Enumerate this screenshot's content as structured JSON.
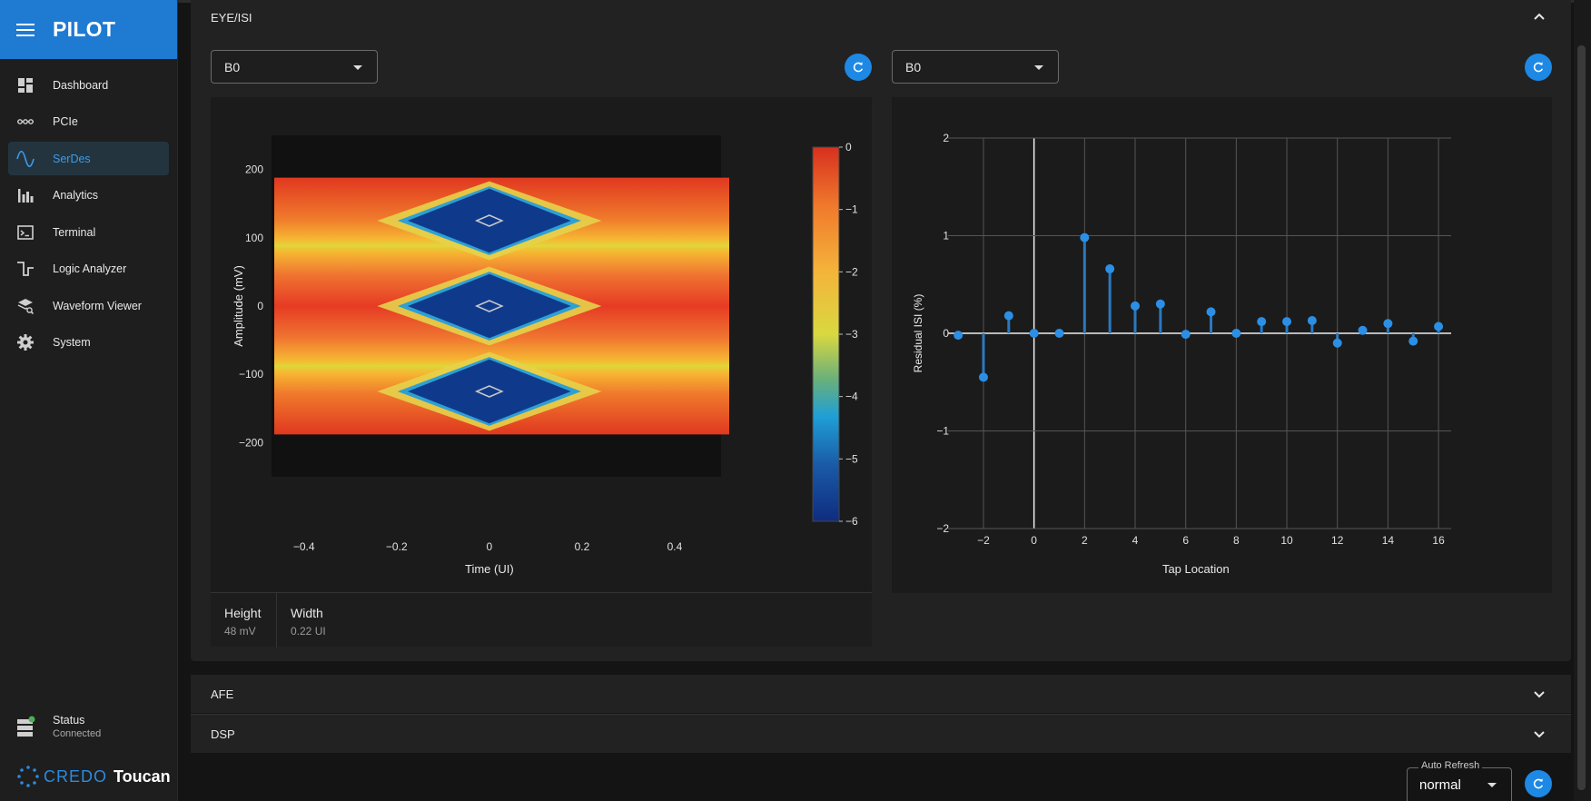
{
  "app": {
    "title": "PILOT"
  },
  "sidebar": {
    "items": [
      {
        "label": "Dashboard",
        "icon": "dashboard-icon",
        "active": false
      },
      {
        "label": "PCIe",
        "icon": "pcie-icon",
        "active": false
      },
      {
        "label": "SerDes",
        "icon": "sine-wave-icon",
        "active": true
      },
      {
        "label": "Analytics",
        "icon": "bar-chart-icon",
        "active": false
      },
      {
        "label": "Terminal",
        "icon": "terminal-icon",
        "active": false
      },
      {
        "label": "Logic Analyzer",
        "icon": "square-wave-icon",
        "active": false
      },
      {
        "label": "Waveform Viewer",
        "icon": "waveform-viewer-icon",
        "active": false
      },
      {
        "label": "System",
        "icon": "gear-icon",
        "active": false
      }
    ],
    "status": {
      "label": "Status",
      "value": "Connected"
    },
    "footer": {
      "brand": "CREDO",
      "product": "Toucan"
    }
  },
  "panels": {
    "eye_isi": {
      "title": "EYE/ISI",
      "left_select": "B0",
      "right_select": "B0",
      "metrics": [
        {
          "label": "Height",
          "value": "48 mV"
        },
        {
          "label": "Width",
          "value": "0.22 UI"
        }
      ]
    },
    "afe": {
      "title": "AFE"
    },
    "dsp": {
      "title": "DSP"
    }
  },
  "auto_refresh": {
    "label": "Auto Refresh",
    "value": "normal"
  },
  "colors": {
    "accent": "#1e88e5",
    "brand": "#1f7ad1",
    "stem": "#2a79c0"
  },
  "chart_data": [
    {
      "type": "heatmap",
      "title": "",
      "xlabel": "Time (UI)",
      "ylabel": "Amplitude (mV)",
      "xlim": [
        -0.47,
        0.5
      ],
      "ylim": [
        -250,
        250
      ],
      "x_ticks": [
        -0.4,
        -0.2,
        0,
        0.2,
        0.4
      ],
      "y_ticks": [
        200,
        100,
        0,
        -100,
        -200
      ],
      "colorbar": {
        "min": -6,
        "max": 0,
        "ticks": [
          0,
          -1,
          -2,
          -3,
          -4,
          -5,
          -6
        ]
      },
      "eyes": [
        {
          "center_amplitude": 125,
          "height": 48,
          "width": 0.22
        },
        {
          "center_amplitude": 0,
          "height": 48,
          "width": 0.22
        },
        {
          "center_amplitude": -125,
          "height": 48,
          "width": 0.22
        }
      ],
      "signal_levels": [
        188,
        125,
        0,
        -125,
        -188
      ]
    },
    {
      "type": "scatter",
      "title": "",
      "xlabel": "Tap Location",
      "ylabel": "Residual ISI (%)",
      "xlim": [
        -3.4,
        16.5
      ],
      "ylim": [
        -2,
        2
      ],
      "x_ticks": [
        -2,
        0,
        2,
        4,
        6,
        8,
        10,
        12,
        14,
        16
      ],
      "y_ticks": [
        2,
        1,
        0,
        -1,
        -2
      ],
      "x": [
        -3,
        -2,
        -1,
        0,
        1,
        2,
        3,
        4,
        5,
        6,
        7,
        8,
        9,
        10,
        11,
        12,
        13,
        14,
        15,
        16
      ],
      "values": [
        -0.02,
        -0.45,
        0.18,
        0.0,
        0.0,
        0.98,
        0.66,
        0.28,
        0.3,
        -0.01,
        0.22,
        0.0,
        0.12,
        0.12,
        0.13,
        -0.1,
        0.03,
        0.1,
        -0.08,
        0.07
      ]
    }
  ]
}
